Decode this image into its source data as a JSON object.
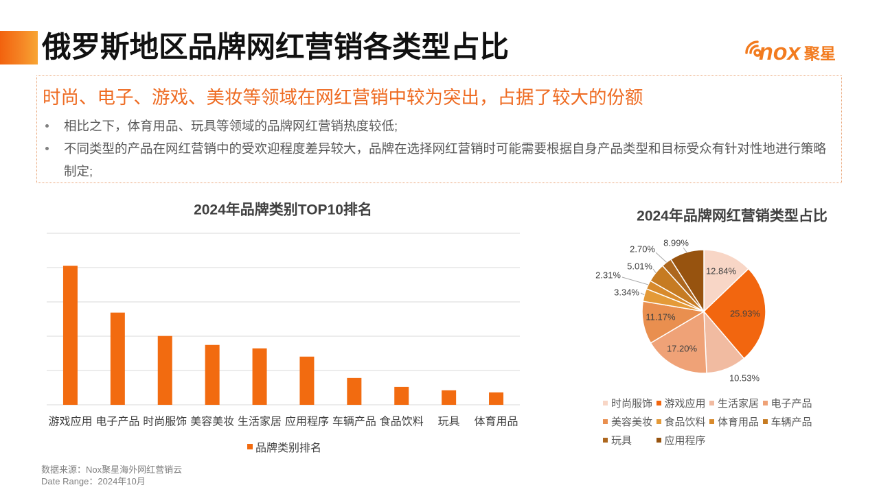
{
  "header": {
    "title": "俄罗斯地区品牌网红营销各类型占比",
    "logo": {
      "wordmark": "nox",
      "name_cn": "聚星"
    }
  },
  "summary": {
    "headline": "时尚、电子、游戏、美妆等领域在网红营销中较为突出，占据了较大的份额",
    "bullets": [
      "相比之下，体育用品、玩具等领域的品牌网红营销热度较低;",
      "不同类型的产品在网红营销中的受欢迎程度差异较大，品牌在选择网红营销时可能需要根据自身产品类型和目标受众有针对性地进行策略制定;"
    ]
  },
  "chart_data": [
    {
      "type": "bar",
      "title": "2024年品牌类别TOP10排名",
      "categories": [
        "游戏应用",
        "电子产品",
        "时尚服饰",
        "美容美妆",
        "生活家居",
        "应用程序",
        "车辆产品",
        "食品饮料",
        "玩具",
        "体育用品"
      ],
      "series": [
        {
          "name": "品牌类别排名",
          "values": [
            25.93,
            17.2,
            12.84,
            11.17,
            10.53,
            8.99,
            5.01,
            3.34,
            2.7,
            2.31
          ],
          "color": "#F26B10"
        }
      ],
      "ylim": [
        0,
        32
      ],
      "grid": true,
      "legend": "bottom"
    },
    {
      "type": "pie",
      "title": "2024年品牌网红营销类型占比",
      "labels": [
        "时尚服饰",
        "游戏应用",
        "生活家居",
        "电子产品",
        "美容美妆",
        "食品饮料",
        "体育用品",
        "车辆产品",
        "玩具",
        "应用程序"
      ],
      "values": [
        12.84,
        25.93,
        10.53,
        17.2,
        11.17,
        3.34,
        2.31,
        5.01,
        2.7,
        8.99
      ],
      "value_labels": [
        "12.84%",
        "25.93%",
        "10.53%",
        "17.20%",
        "11.17%",
        "3.34%",
        "2.31%",
        "5.01%",
        "2.70%",
        "8.99%"
      ],
      "colors": [
        "#F8D6C6",
        "#F2660F",
        "#F1BBA1",
        "#EFA277",
        "#E98F4F",
        "#E49A38",
        "#D88A2C",
        "#C67B22",
        "#AD671E",
        "#97530F"
      ],
      "legend": "bottom"
    }
  ],
  "footer": {
    "source": "数据来源：Nox聚星海外网红营销云",
    "date_range": "Date Range：2024年10月"
  },
  "colors": {
    "accent": "#F26A12",
    "headline": "#EE6B22",
    "title": "#111111"
  }
}
